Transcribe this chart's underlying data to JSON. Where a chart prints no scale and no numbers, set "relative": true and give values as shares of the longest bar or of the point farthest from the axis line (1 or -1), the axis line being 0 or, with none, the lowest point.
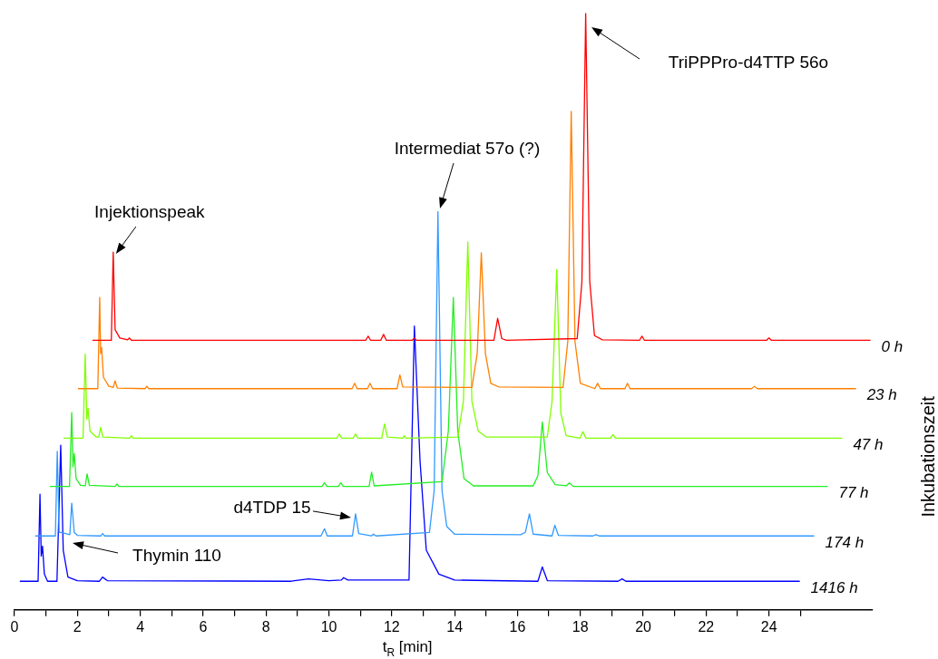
{
  "chart_data": {
    "type": "line",
    "relative": true,
    "xlabel": "t$_{R}$ [min]",
    "ylabel": "Inkubationszeit",
    "legend": false,
    "grid": false,
    "marker": "none",
    "line_style": "solid",
    "tick_labels": "x",
    "xlim": [
      0,
      27.3
    ],
    "xticks": [
      0,
      {
        "value": 1,
        "label": null
      },
      2,
      {
        "value": 3,
        "label": null
      },
      4,
      {
        "value": 5,
        "label": null
      },
      6,
      {
        "value": 7,
        "label": null
      },
      8,
      {
        "value": 9,
        "label": null
      },
      10,
      {
        "value": 11,
        "label": null
      },
      12,
      {
        "value": 13,
        "label": null
      },
      14,
      {
        "value": 15,
        "label": null
      },
      16,
      {
        "value": 17,
        "label": null
      },
      18,
      {
        "value": 19,
        "label": null
      },
      20,
      {
        "value": 21,
        "label": null
      },
      22,
      {
        "value": 23,
        "label": null
      },
      24,
      {
        "value": 25,
        "label": null
      }
    ],
    "annotations": [
      {
        "text": "Injektionspeak",
        "x": 3.14,
        "y": 0.6
      },
      "Intermediat 57o (?)",
      "TriPPPro-d4TTP 56o",
      {
        "text": "d4TDP 15",
        "x": 10.85,
        "y": 0.161
      },
      "Thymin 110"
    ],
    "series": [
      {
        "name": "0 h",
        "color": "#ff0000",
        "x": [
          2.48,
          3.08,
          3.14,
          3.2,
          3.35,
          3.6,
          3.66,
          3.72,
          11.17,
          11.25,
          11.33,
          11.65,
          11.74,
          11.83,
          12.65,
          12.72,
          12.79,
          15.25,
          15.37,
          15.5,
          15.65,
          17.9,
          18.05,
          18.17,
          18.3,
          18.45,
          18.7,
          19.88,
          19.96,
          20.04,
          23.92,
          24.0,
          24.08,
          27.23
        ],
        "values": [
          0.452,
          0.452,
          0.6,
          0.47,
          0.456,
          0.453,
          0.456,
          0.452,
          0.452,
          0.459,
          0.452,
          0.452,
          0.462,
          0.452,
          0.452,
          0.456,
          0.452,
          0.452,
          0.489,
          0.455,
          0.452,
          0.455,
          0.55,
          1,
          0.55,
          0.46,
          0.453,
          0.452,
          0.459,
          0.452,
          0.452,
          0.456,
          0.452,
          0.452
        ]
      },
      {
        "name": "23 h",
        "color": "#ff8000",
        "x": [
          2.02,
          2.65,
          2.71,
          2.74,
          2.77,
          2.83,
          3.0,
          3.14,
          3.2,
          3.27,
          4.15,
          4.21,
          4.27,
          10.74,
          10.82,
          10.9,
          11.23,
          11.31,
          11.39,
          12.17,
          12.26,
          12.35,
          14.55,
          14.72,
          14.85,
          14.98,
          15.15,
          15.4,
          17.45,
          17.6,
          17.71,
          17.83,
          18.0,
          18.46,
          18.55,
          18.64,
          19.42,
          19.5,
          19.58,
          23.45,
          23.54,
          23.63,
          26.77
        ],
        "values": [
          0.371,
          0.371,
          0.524,
          0.43,
          0.44,
          0.39,
          0.375,
          0.373,
          0.384,
          0.372,
          0.371,
          0.375,
          0.371,
          0.371,
          0.38,
          0.371,
          0.371,
          0.38,
          0.371,
          0.371,
          0.394,
          0.374,
          0.373,
          0.43,
          0.599,
          0.43,
          0.38,
          0.374,
          0.373,
          0.45,
          0.836,
          0.45,
          0.38,
          0.371,
          0.38,
          0.371,
          0.371,
          0.38,
          0.371,
          0.371,
          0.375,
          0.371,
          0.371
        ]
      },
      {
        "name": "47 h",
        "color": "#80ff00",
        "x": [
          1.56,
          2.18,
          2.25,
          2.3,
          2.34,
          2.4,
          2.6,
          2.68,
          2.74,
          2.81,
          3.66,
          3.72,
          3.78,
          10.25,
          10.33,
          10.41,
          10.77,
          10.85,
          10.93,
          11.68,
          11.77,
          11.86,
          12.35,
          12.4,
          12.45,
          14.1,
          14.28,
          14.42,
          14.55,
          14.75,
          15.0,
          16.95,
          17.1,
          17.25,
          17.38,
          17.55,
          17.99,
          18.08,
          18.18,
          18.96,
          19.04,
          19.12,
          26.33
        ],
        "values": [
          0.288,
          0.288,
          0.429,
          0.32,
          0.338,
          0.3,
          0.29,
          0.29,
          0.306,
          0.29,
          0.288,
          0.292,
          0.288,
          0.288,
          0.295,
          0.288,
          0.288,
          0.295,
          0.288,
          0.288,
          0.312,
          0.29,
          0.288,
          0.292,
          0.288,
          0.29,
          0.35,
          0.617,
          0.35,
          0.3,
          0.29,
          0.29,
          0.35,
          0.571,
          0.33,
          0.292,
          0.288,
          0.299,
          0.288,
          0.288,
          0.294,
          0.288,
          0.288
        ]
      },
      {
        "name": "77 h",
        "color": "#22ee22",
        "x": [
          1.12,
          1.75,
          1.82,
          1.86,
          1.9,
          1.96,
          2.1,
          2.25,
          2.31,
          2.38,
          3.2,
          3.26,
          3.32,
          9.78,
          9.86,
          9.94,
          10.3,
          10.38,
          10.46,
          11.28,
          11.36,
          11.44,
          13.6,
          13.8,
          13.96,
          14.1,
          14.3,
          14.6,
          16.5,
          16.65,
          16.79,
          16.95,
          17.2,
          17.55,
          17.65,
          17.78,
          25.87
        ],
        "values": [
          0.207,
          0.207,
          0.331,
          0.24,
          0.262,
          0.22,
          0.209,
          0.208,
          0.228,
          0.209,
          0.207,
          0.211,
          0.207,
          0.207,
          0.213,
          0.207,
          0.207,
          0.213,
          0.207,
          0.207,
          0.231,
          0.208,
          0.215,
          0.3,
          0.524,
          0.3,
          0.22,
          0.208,
          0.208,
          0.225,
          0.315,
          0.23,
          0.21,
          0.208,
          0.213,
          0.207,
          0.207
        ]
      },
      {
        "name": "174 h",
        "color": "#3399ff",
        "x": [
          0.66,
          1.3,
          1.36,
          1.42,
          1.5,
          1.76,
          1.82,
          1.9,
          2.0,
          2.75,
          2.8,
          2.87,
          9.75,
          9.86,
          9.95,
          10.75,
          10.85,
          10.95,
          11.35,
          11.42,
          11.5,
          13.2,
          13.35,
          13.47,
          13.6,
          13.75,
          14.0,
          16.1,
          16.25,
          16.38,
          16.5,
          17.1,
          17.19,
          17.3,
          18.4,
          18.49,
          18.6,
          25.44
        ],
        "values": [
          0.124,
          0.124,
          0.266,
          0.13,
          0.13,
          0.126,
          0.179,
          0.13,
          0.125,
          0.124,
          0.128,
          0.124,
          0.124,
          0.136,
          0.124,
          0.124,
          0.161,
          0.128,
          0.124,
          0.127,
          0.124,
          0.13,
          0.2,
          0.668,
          0.2,
          0.14,
          0.127,
          0.126,
          0.13,
          0.161,
          0.127,
          0.124,
          0.142,
          0.125,
          0.124,
          0.126,
          0.124,
          0.124
        ]
      },
      {
        "name": "1416 h",
        "color": "#0000ff",
        "x": [
          0.17,
          0.75,
          0.81,
          0.85,
          0.89,
          0.95,
          1.05,
          1.35,
          1.47,
          1.55,
          1.7,
          2.0,
          2.7,
          2.8,
          2.95,
          8.8,
          9.35,
          10.0,
          10.4,
          10.47,
          10.6,
          12.55,
          12.72,
          12.9,
          13.1,
          13.5,
          14.0,
          16.65,
          16.79,
          16.95,
          19.2,
          19.33,
          19.45,
          24.98
        ],
        "values": [
          0.048,
          0.048,
          0.194,
          0.09,
          0.107,
          0.06,
          0.048,
          0.048,
          0.276,
          0.1,
          0.055,
          0.049,
          0.048,
          0.055,
          0.049,
          0.048,
          0.052,
          0.049,
          0.05,
          0.054,
          0.05,
          0.05,
          0.476,
          0.25,
          0.1,
          0.06,
          0.05,
          0.048,
          0.072,
          0.049,
          0.048,
          0.052,
          0.048,
          0.048
        ]
      }
    ]
  }
}
